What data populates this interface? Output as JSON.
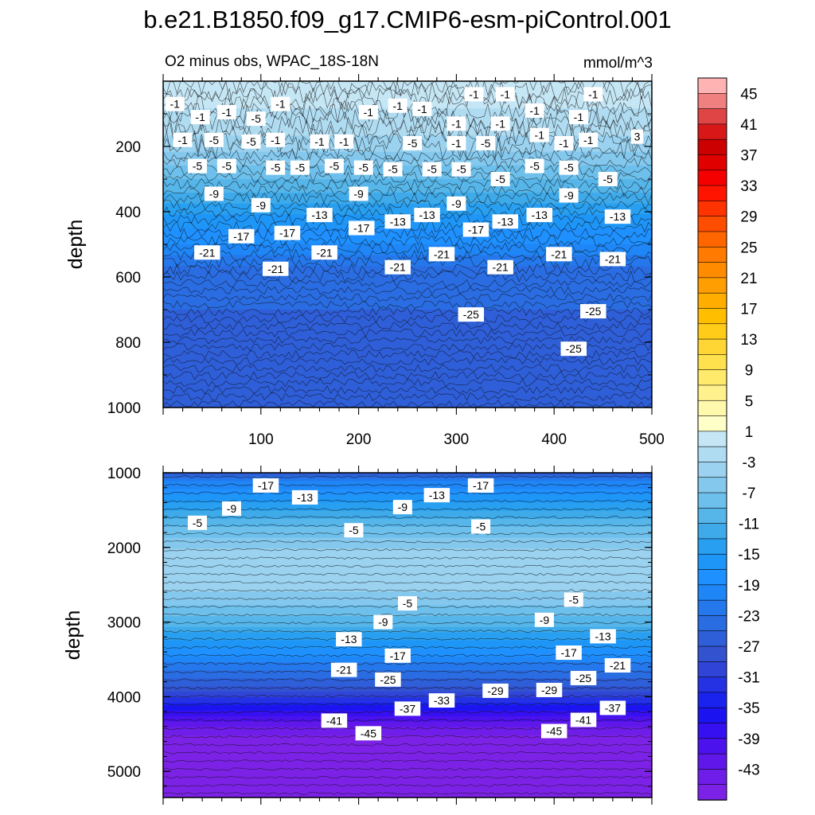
{
  "chart_data": [
    {
      "type": "heatmap",
      "title": "b.e21.B1850.f09_g17.CMIP6-esm-piControl.001",
      "subtitle": "O2 minus obs, WPAC_18S-18N",
      "units": "mmol/m^3",
      "ylabel": "depth",
      "xlim": [
        0,
        500
      ],
      "ylim": [
        1000,
        0
      ],
      "x_ticks": [
        "100",
        "200",
        "300",
        "400",
        "500"
      ],
      "y_ticks": [
        "200",
        "400",
        "600",
        "800",
        "1000"
      ],
      "y_tick_values": [
        200,
        400,
        600,
        800,
        1000
      ],
      "depth_profile": [
        {
          "depth": 40,
          "value": 1
        },
        {
          "depth": 130,
          "value": -1
        },
        {
          "depth": 200,
          "value": -3
        },
        {
          "depth": 280,
          "value": -7
        },
        {
          "depth": 360,
          "value": -11
        },
        {
          "depth": 430,
          "value": -15
        },
        {
          "depth": 520,
          "value": -19
        },
        {
          "depth": 580,
          "value": -23
        },
        {
          "depth": 700,
          "value": -24
        },
        {
          "depth": 900,
          "value": -25
        },
        {
          "depth": 1000,
          "value": -25
        }
      ],
      "contour_labels": [
        {
          "x": 12,
          "depth": 70,
          "text": "-1"
        },
        {
          "x": 38,
          "depth": 110,
          "text": "-1"
        },
        {
          "x": 65,
          "depth": 95,
          "text": "-1"
        },
        {
          "x": 120,
          "depth": 70,
          "text": "-1"
        },
        {
          "x": 210,
          "depth": 95,
          "text": "-1"
        },
        {
          "x": 240,
          "depth": 75,
          "text": "-1"
        },
        {
          "x": 265,
          "depth": 85,
          "text": "-1"
        },
        {
          "x": 318,
          "depth": 40,
          "text": "-1"
        },
        {
          "x": 350,
          "depth": 40,
          "text": "-1"
        },
        {
          "x": 380,
          "depth": 90,
          "text": "-1"
        },
        {
          "x": 425,
          "depth": 110,
          "text": "-1"
        },
        {
          "x": 440,
          "depth": 40,
          "text": "-1"
        },
        {
          "x": 20,
          "depth": 180,
          "text": "-1"
        },
        {
          "x": 115,
          "depth": 180,
          "text": "-1"
        },
        {
          "x": 160,
          "depth": 185,
          "text": "-1"
        },
        {
          "x": 185,
          "depth": 185,
          "text": "-1"
        },
        {
          "x": 300,
          "depth": 130,
          "text": "-1"
        },
        {
          "x": 300,
          "depth": 190,
          "text": "-1"
        },
        {
          "x": 345,
          "depth": 130,
          "text": "-1"
        },
        {
          "x": 385,
          "depth": 165,
          "text": "-1"
        },
        {
          "x": 410,
          "depth": 190,
          "text": "-1"
        },
        {
          "x": 435,
          "depth": 180,
          "text": "-1"
        },
        {
          "x": 485,
          "depth": 170,
          "text": "3"
        },
        {
          "x": 95,
          "depth": 115,
          "text": "-5"
        },
        {
          "x": 52,
          "depth": 180,
          "text": "-5"
        },
        {
          "x": 90,
          "depth": 185,
          "text": "-5"
        },
        {
          "x": 35,
          "depth": 260,
          "text": "-5"
        },
        {
          "x": 65,
          "depth": 260,
          "text": "-5"
        },
        {
          "x": 115,
          "depth": 265,
          "text": "-5"
        },
        {
          "x": 140,
          "depth": 265,
          "text": "-5"
        },
        {
          "x": 175,
          "depth": 260,
          "text": "-5"
        },
        {
          "x": 205,
          "depth": 265,
          "text": "-5"
        },
        {
          "x": 235,
          "depth": 270,
          "text": "-5"
        },
        {
          "x": 255,
          "depth": 190,
          "text": "-5"
        },
        {
          "x": 275,
          "depth": 270,
          "text": "-5"
        },
        {
          "x": 305,
          "depth": 270,
          "text": "-5"
        },
        {
          "x": 330,
          "depth": 190,
          "text": "-5"
        },
        {
          "x": 345,
          "depth": 300,
          "text": "-5"
        },
        {
          "x": 380,
          "depth": 260,
          "text": "-5"
        },
        {
          "x": 415,
          "depth": 265,
          "text": "-5"
        },
        {
          "x": 455,
          "depth": 300,
          "text": "-5"
        },
        {
          "x": 52,
          "depth": 345,
          "text": "-9"
        },
        {
          "x": 100,
          "depth": 380,
          "text": "-9"
        },
        {
          "x": 200,
          "depth": 345,
          "text": "-9"
        },
        {
          "x": 300,
          "depth": 375,
          "text": "-9"
        },
        {
          "x": 415,
          "depth": 350,
          "text": "-9"
        },
        {
          "x": 160,
          "depth": 410,
          "text": "-13"
        },
        {
          "x": 240,
          "depth": 430,
          "text": "-13"
        },
        {
          "x": 270,
          "depth": 410,
          "text": "-13"
        },
        {
          "x": 350,
          "depth": 430,
          "text": "-13"
        },
        {
          "x": 385,
          "depth": 410,
          "text": "-13"
        },
        {
          "x": 465,
          "depth": 415,
          "text": "-13"
        },
        {
          "x": 80,
          "depth": 475,
          "text": "-17"
        },
        {
          "x": 127,
          "depth": 465,
          "text": "-17"
        },
        {
          "x": 203,
          "depth": 450,
          "text": "-17"
        },
        {
          "x": 320,
          "depth": 455,
          "text": "-17"
        },
        {
          "x": 45,
          "depth": 525,
          "text": "-21"
        },
        {
          "x": 115,
          "depth": 575,
          "text": "-21"
        },
        {
          "x": 165,
          "depth": 525,
          "text": "-21"
        },
        {
          "x": 240,
          "depth": 570,
          "text": "-21"
        },
        {
          "x": 285,
          "depth": 530,
          "text": "-21"
        },
        {
          "x": 345,
          "depth": 570,
          "text": "-21"
        },
        {
          "x": 405,
          "depth": 530,
          "text": "-21"
        },
        {
          "x": 460,
          "depth": 545,
          "text": "-21"
        },
        {
          "x": 315,
          "depth": 715,
          "text": "-25"
        },
        {
          "x": 440,
          "depth": 705,
          "text": "-25"
        },
        {
          "x": 420,
          "depth": 820,
          "text": "-25"
        }
      ]
    },
    {
      "type": "heatmap",
      "ylabel": "depth",
      "xlim": [
        0,
        500
      ],
      "ylim": [
        5350,
        1000
      ],
      "y_ticks": [
        "1000",
        "2000",
        "3000",
        "4000",
        "5000"
      ],
      "y_tick_values": [
        1000,
        2000,
        3000,
        4000,
        5000
      ],
      "depth_profile": [
        {
          "depth": 1000,
          "value": -25
        },
        {
          "depth": 1150,
          "value": -19
        },
        {
          "depth": 1350,
          "value": -15
        },
        {
          "depth": 1550,
          "value": -11
        },
        {
          "depth": 1800,
          "value": -7
        },
        {
          "depth": 2000,
          "value": -4
        },
        {
          "depth": 2500,
          "value": -3
        },
        {
          "depth": 2700,
          "value": -5
        },
        {
          "depth": 3000,
          "value": -9
        },
        {
          "depth": 3300,
          "value": -15
        },
        {
          "depth": 3600,
          "value": -21
        },
        {
          "depth": 3900,
          "value": -27
        },
        {
          "depth": 4100,
          "value": -33
        },
        {
          "depth": 4300,
          "value": -39
        },
        {
          "depth": 4450,
          "value": -43
        },
        {
          "depth": 4600,
          "value": -45
        },
        {
          "depth": 5350,
          "value": -45
        }
      ],
      "contour_labels": [
        {
          "x": 105,
          "depth": 1170,
          "text": "-17"
        },
        {
          "x": 145,
          "depth": 1330,
          "text": "-13"
        },
        {
          "x": 70,
          "depth": 1480,
          "text": "-9"
        },
        {
          "x": 35,
          "depth": 1670,
          "text": "-5"
        },
        {
          "x": 245,
          "depth": 1460,
          "text": "-9"
        },
        {
          "x": 280,
          "depth": 1300,
          "text": "-13"
        },
        {
          "x": 195,
          "depth": 1770,
          "text": "-5"
        },
        {
          "x": 325,
          "depth": 1170,
          "text": "-17"
        },
        {
          "x": 325,
          "depth": 1720,
          "text": "-5"
        },
        {
          "x": 250,
          "depth": 2750,
          "text": "-5"
        },
        {
          "x": 420,
          "depth": 2700,
          "text": "-5"
        },
        {
          "x": 225,
          "depth": 3000,
          "text": "-9"
        },
        {
          "x": 390,
          "depth": 2970,
          "text": "-9"
        },
        {
          "x": 190,
          "depth": 3230,
          "text": "-13"
        },
        {
          "x": 450,
          "depth": 3190,
          "text": "-13"
        },
        {
          "x": 240,
          "depth": 3450,
          "text": "-17"
        },
        {
          "x": 415,
          "depth": 3410,
          "text": "-17"
        },
        {
          "x": 185,
          "depth": 3640,
          "text": "-21"
        },
        {
          "x": 465,
          "depth": 3580,
          "text": "-21"
        },
        {
          "x": 230,
          "depth": 3770,
          "text": "-25"
        },
        {
          "x": 430,
          "depth": 3750,
          "text": "-25"
        },
        {
          "x": 340,
          "depth": 3920,
          "text": "-29"
        },
        {
          "x": 395,
          "depth": 3910,
          "text": "-29"
        },
        {
          "x": 285,
          "depth": 4050,
          "text": "-33"
        },
        {
          "x": 250,
          "depth": 4160,
          "text": "-37"
        },
        {
          "x": 460,
          "depth": 4150,
          "text": "-37"
        },
        {
          "x": 175,
          "depth": 4320,
          "text": "-41"
        },
        {
          "x": 430,
          "depth": 4310,
          "text": "-41"
        },
        {
          "x": 210,
          "depth": 4490,
          "text": "-45"
        },
        {
          "x": 400,
          "depth": 4460,
          "text": "-45"
        }
      ]
    }
  ],
  "colorbar": {
    "labels": [
      "45",
      "41",
      "37",
      "33",
      "29",
      "25",
      "21",
      "17",
      "13",
      "9",
      "5",
      "1",
      "-3",
      "-7",
      "-11",
      "-15",
      "-19",
      "-23",
      "-27",
      "-31",
      "-35",
      "-39",
      "-43"
    ],
    "colors": [
      "#ffb3b3",
      "#f08080",
      "#e04545",
      "#d81818",
      "#cc0000",
      "#e00000",
      "#f40000",
      "#ff1400",
      "#ff3300",
      "#ff4d00",
      "#ff6600",
      "#ff7a00",
      "#ff8c00",
      "#ff9e00",
      "#ffae00",
      "#ffbe00",
      "#ffcc19",
      "#ffd633",
      "#ffe04d",
      "#ffea6b",
      "#fff28c",
      "#fff9ad",
      "#ffffc8",
      "#c5e6f5",
      "#b0dcf2",
      "#9ad2f0",
      "#84c8ee",
      "#6ec0ec",
      "#56b6ea",
      "#3eaaea",
      "#289ff0",
      "#1e96f8",
      "#1e90ff",
      "#1e86f6",
      "#2478ec",
      "#2a6ce2",
      "#2e5ed8",
      "#3252d0",
      "#3044d8",
      "#2432e4",
      "#1a22ee",
      "#1c14f0",
      "#3610f0",
      "#4c12ee",
      "#6018ea",
      "#6e1ee8",
      "#7c22e6"
    ]
  }
}
